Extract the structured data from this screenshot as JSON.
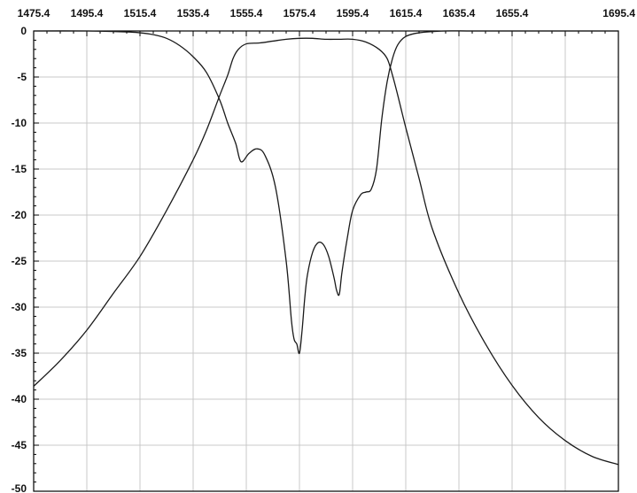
{
  "chart_data": {
    "type": "line",
    "title": "",
    "xlabel": "",
    "ylabel": "",
    "xlim": [
      1475.4,
      1695.4
    ],
    "ylim": [
      -50,
      0
    ],
    "x_ticks": [
      1475.4,
      1495.4,
      1515.4,
      1535.4,
      1555.4,
      1575.4,
      1595.4,
      1615.4,
      1635.4,
      1655.4,
      1695.4
    ],
    "x_tick_labels": [
      "1475.4",
      "1495.4",
      "1515.4",
      "1535.4",
      "1555.4",
      "1575.4",
      "1595.4",
      "1615.4",
      "1635.4",
      "1655.4",
      "1695.4"
    ],
    "y_ticks": [
      0,
      -5,
      -10,
      -15,
      -20,
      -25,
      -30,
      -35,
      -40,
      -45,
      -50
    ],
    "y_tick_labels": [
      "0",
      "-5",
      "-10",
      "-15",
      "-20",
      "-25",
      "-30",
      "-35",
      "-40",
      "-45",
      "-50"
    ],
    "grid": true,
    "legend": "none",
    "series": [
      {
        "color": "#1a1a1a",
        "x": [
          1475.4,
          1485.4,
          1495.4,
          1505.4,
          1515.4,
          1525.4,
          1535.4,
          1540.4,
          1545.4,
          1548.4,
          1550.4,
          1552.4,
          1555.4,
          1560.4,
          1565.4,
          1570.4,
          1575.4,
          1580.4,
          1585.4,
          1590.4,
          1595.4,
          1600.4,
          1605.4,
          1608.4,
          1610.4,
          1612.4,
          1615.4,
          1620.4,
          1625.4,
          1635.4,
          1645.4,
          1655.4,
          1665.4,
          1675.4,
          1685.4,
          1695.4
        ],
        "y": [
          -38.6,
          -35.8,
          -32.5,
          -28.5,
          -24.5,
          -19.5,
          -14.0,
          -10.8,
          -7.0,
          -4.8,
          -3.0,
          -2.0,
          -1.4,
          -1.3,
          -1.1,
          -0.9,
          -0.8,
          -0.8,
          -0.9,
          -0.9,
          -0.9,
          -1.2,
          -2.0,
          -3.0,
          -4.8,
          -7.0,
          -10.5,
          -16.0,
          -21.5,
          -28.5,
          -34.0,
          -38.5,
          -42.0,
          -44.5,
          -46.2,
          -47.1
        ]
      },
      {
        "color": "#1a1a1a",
        "x": [
          1475.4,
          1495.4,
          1510.4,
          1515.4,
          1520.4,
          1525.4,
          1530.4,
          1535.4,
          1540.4,
          1545.4,
          1548.4,
          1551.4,
          1553.4,
          1556.4,
          1559.4,
          1562.4,
          1566.4,
          1570.4,
          1572.4,
          1573.4,
          1574.4,
          1575.4,
          1576.4,
          1577.4,
          1578.4,
          1580.4,
          1582.4,
          1584.4,
          1586.4,
          1588.4,
          1589.4,
          1590.4,
          1591.4,
          1593.4,
          1595.4,
          1598.4,
          1600.4,
          1602.4,
          1604.4,
          1606.4,
          1608.4,
          1610.4,
          1612.4,
          1615.4,
          1620.4,
          1630.4,
          1640.4,
          1660.4,
          1695.4
        ],
        "y": [
          0,
          0,
          -0.1,
          -0.2,
          -0.4,
          -0.8,
          -1.6,
          -2.8,
          -4.5,
          -7.5,
          -10.0,
          -12.2,
          -14.2,
          -13.3,
          -12.8,
          -13.5,
          -17.0,
          -25.0,
          -31.5,
          -33.5,
          -34.0,
          -35.0,
          -32.5,
          -29.0,
          -26.5,
          -24.0,
          -23.0,
          -23.2,
          -24.5,
          -26.8,
          -28.2,
          -28.6,
          -26.2,
          -22.5,
          -19.5,
          -17.8,
          -17.5,
          -17.2,
          -15.0,
          -9.5,
          -5.5,
          -3.0,
          -1.5,
          -0.6,
          -0.2,
          0,
          0,
          0,
          0
        ]
      }
    ]
  }
}
